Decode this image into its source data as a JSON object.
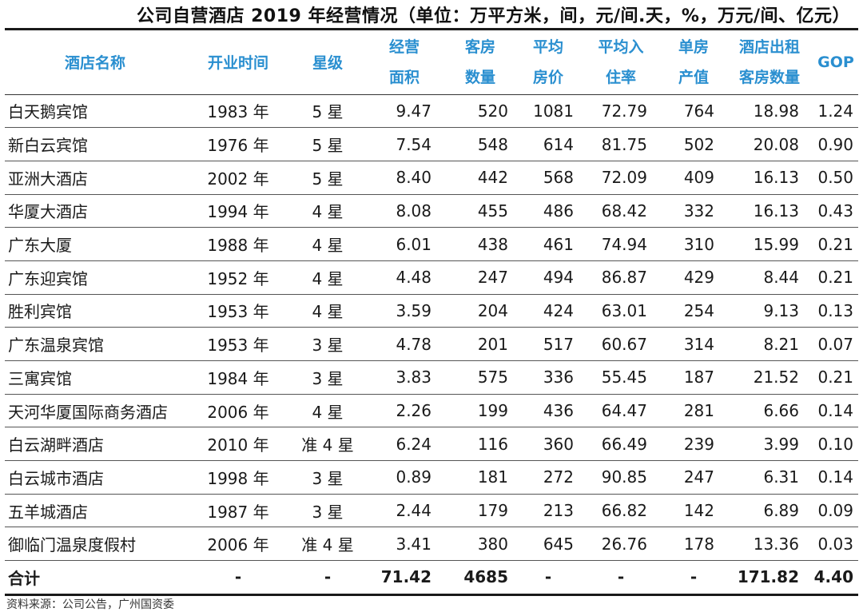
{
  "title": "公司自营酒店 2019 年经营情况（单位：万平方米，间，元/间.天，%，万元/间、亿元）",
  "headers": {
    "name": "酒店名称",
    "opening": "开业时间",
    "star": "星级",
    "area": [
      "经营",
      "面积"
    ],
    "rooms": [
      "客房",
      "数量"
    ],
    "price": [
      "平均",
      "房价"
    ],
    "occupancy": [
      "平均入",
      "住率"
    ],
    "productivity": [
      "单房",
      "产值"
    ],
    "rented": [
      "酒店出租",
      "客房数量"
    ],
    "gop": "GOP"
  },
  "rows": [
    {
      "name": "白天鹅宾馆",
      "opening": "1983 年",
      "star": "5 星",
      "area": "9.47",
      "rooms": "520",
      "price": "1081",
      "occupancy": "72.79",
      "productivity": "764",
      "rented": "18.98",
      "gop": "1.24"
    },
    {
      "name": "新白云宾馆",
      "opening": "1976 年",
      "star": "5 星",
      "area": "7.54",
      "rooms": "548",
      "price": "614",
      "occupancy": "81.75",
      "productivity": "502",
      "rented": "20.08",
      "gop": "0.90"
    },
    {
      "name": "亚洲大酒店",
      "opening": "2002 年",
      "star": "5 星",
      "area": "8.40",
      "rooms": "442",
      "price": "568",
      "occupancy": "72.09",
      "productivity": "409",
      "rented": "16.13",
      "gop": "0.50"
    },
    {
      "name": "华厦大酒店",
      "opening": "1994 年",
      "star": "4 星",
      "area": "8.08",
      "rooms": "455",
      "price": "486",
      "occupancy": "68.42",
      "productivity": "332",
      "rented": "16.13",
      "gop": "0.43"
    },
    {
      "name": "广东大厦",
      "opening": "1988 年",
      "star": "4 星",
      "area": "6.01",
      "rooms": "438",
      "price": "461",
      "occupancy": "74.94",
      "productivity": "310",
      "rented": "15.99",
      "gop": "0.21"
    },
    {
      "name": "广东迎宾馆",
      "opening": "1952 年",
      "star": "4 星",
      "area": "4.48",
      "rooms": "247",
      "price": "494",
      "occupancy": "86.87",
      "productivity": "429",
      "rented": "8.44",
      "gop": "0.21"
    },
    {
      "name": "胜利宾馆",
      "opening": "1953 年",
      "star": "4 星",
      "area": "3.59",
      "rooms": "204",
      "price": "424",
      "occupancy": "63.01",
      "productivity": "254",
      "rented": "9.13",
      "gop": "0.13"
    },
    {
      "name": "广东温泉宾馆",
      "opening": "1953 年",
      "star": "3 星",
      "area": "4.78",
      "rooms": "201",
      "price": "517",
      "occupancy": "60.67",
      "productivity": "314",
      "rented": "8.21",
      "gop": "0.07"
    },
    {
      "name": "三寓宾馆",
      "opening": "1984 年",
      "star": "3 星",
      "area": "3.83",
      "rooms": "575",
      "price": "336",
      "occupancy": "55.45",
      "productivity": "187",
      "rented": "21.52",
      "gop": "0.21"
    },
    {
      "name": "天河华厦国际商务酒店",
      "opening": "2006 年",
      "star": "4 星",
      "area": "2.26",
      "rooms": "199",
      "price": "436",
      "occupancy": "64.47",
      "productivity": "281",
      "rented": "6.66",
      "gop": "0.14"
    },
    {
      "name": "白云湖畔酒店",
      "opening": "2010 年",
      "star": "准 4 星",
      "area": "6.24",
      "rooms": "116",
      "price": "360",
      "occupancy": "66.49",
      "productivity": "239",
      "rented": "3.99",
      "gop": "0.10"
    },
    {
      "name": "白云城市酒店",
      "opening": "1998 年",
      "star": "3 星",
      "area": "0.89",
      "rooms": "181",
      "price": "272",
      "occupancy": "90.85",
      "productivity": "247",
      "rented": "6.31",
      "gop": "0.14"
    },
    {
      "name": "五羊城酒店",
      "opening": "1987 年",
      "star": "3 星",
      "area": "2.44",
      "rooms": "179",
      "price": "213",
      "occupancy": "66.82",
      "productivity": "142",
      "rented": "6.89",
      "gop": "0.09"
    },
    {
      "name": "御临门温泉度假村",
      "opening": "2006 年",
      "star": "准 4 星",
      "area": "3.41",
      "rooms": "380",
      "price": "645",
      "occupancy": "26.76",
      "productivity": "178",
      "rented": "13.36",
      "gop": "0.03"
    }
  ],
  "total": {
    "name": "合计",
    "opening": "-",
    "star": "-",
    "area": "71.42",
    "rooms": "4685",
    "price": "-",
    "occupancy": "-",
    "productivity": "-",
    "rented": "171.82",
    "gop": "4.40"
  },
  "source": "资料来源：公司公告，广州国资委"
}
